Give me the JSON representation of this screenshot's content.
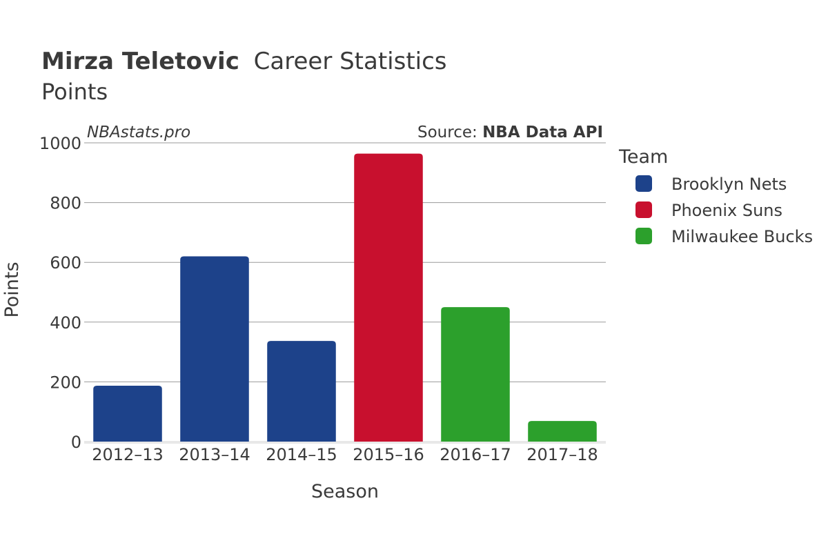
{
  "title": {
    "player": "Mirza Teletovic",
    "suffix": "Career Statistics",
    "subtitle": "Points"
  },
  "watermark": "NBAstats.pro",
  "source": {
    "prefix": "Source: ",
    "name": "NBA Data API"
  },
  "legend": {
    "title": "Team",
    "placement": "right",
    "items": [
      {
        "label": "Brooklyn Nets",
        "color": "#1d428a"
      },
      {
        "label": "Phoenix Suns",
        "color": "#c8102e"
      },
      {
        "label": "Milwaukee Bucks",
        "color": "#2ca02c"
      }
    ]
  },
  "chart_data": {
    "type": "bar",
    "title": "Mirza Teletovic Career Statistics",
    "subtitle": "Points",
    "xlabel": "Season",
    "ylabel": "Points",
    "ylim": [
      0,
      1000
    ],
    "yticks": [
      0,
      200,
      400,
      600,
      800,
      1000
    ],
    "grid": true,
    "categories": [
      "2012–13",
      "2013–14",
      "2014–15",
      "2015–16",
      "2016–17",
      "2017–18"
    ],
    "values": [
      187,
      620,
      337,
      964,
      450,
      69
    ],
    "teams": [
      "Brooklyn Nets",
      "Brooklyn Nets",
      "Brooklyn Nets",
      "Phoenix Suns",
      "Milwaukee Bucks",
      "Milwaukee Bucks"
    ],
    "colors": {
      "Brooklyn Nets": "#1d428a",
      "Phoenix Suns": "#c8102e",
      "Milwaukee Bucks": "#2ca02c"
    }
  }
}
